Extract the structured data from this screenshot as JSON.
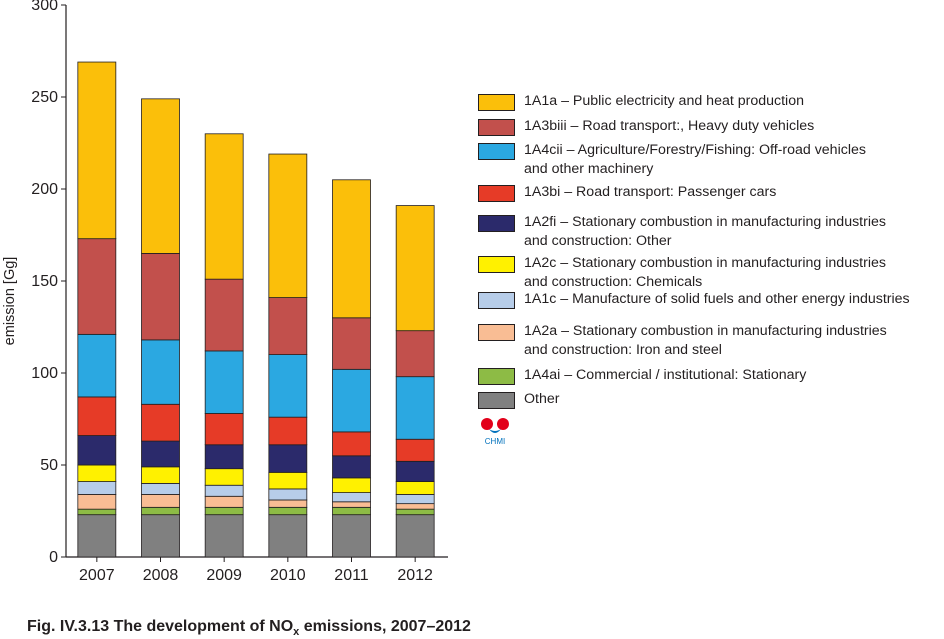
{
  "chart_data": {
    "type": "bar",
    "stacked": true,
    "categories": [
      "2007",
      "2008",
      "2009",
      "2010",
      "2011",
      "2012"
    ],
    "ylabel": "emission [Gg]",
    "xlabel": "",
    "ylim": [
      0,
      300
    ],
    "yticks": [
      0,
      50,
      100,
      150,
      200,
      250,
      300
    ],
    "grid": false,
    "legend_position": "right",
    "series": [
      {
        "name": "Other",
        "color": "#808080",
        "values": [
          23,
          23,
          23,
          23,
          23,
          23
        ]
      },
      {
        "name": "1A4ai – Commercial / institutional: Stationary",
        "color": "#8dbb45",
        "values": [
          3,
          4,
          4,
          4,
          4,
          3
        ]
      },
      {
        "name": "1A2a – Stationary combustion in manufacturing industries\nand construction: Iron and steel",
        "color": "#f9bd94",
        "values": [
          8,
          7,
          6,
          4,
          3,
          3
        ]
      },
      {
        "name": "1A1c – Manufacture of solid fuels and other energy industries",
        "color": "#b7cde9",
        "values": [
          7,
          6,
          6,
          6,
          5,
          5
        ]
      },
      {
        "name": "1A2c – Stationary combustion in manufacturing industries\nand construction: Chemicals",
        "color": "#fff100",
        "values": [
          9,
          9,
          9,
          9,
          8,
          7
        ]
      },
      {
        "name": "1A2fi – Stationary combustion in manufacturing industries\nand construction: Other",
        "color": "#2b2a6b",
        "values": [
          16,
          14,
          13,
          15,
          12,
          11
        ]
      },
      {
        "name": "1A3bi – Road transport: Passenger cars",
        "color": "#e63b27",
        "values": [
          21,
          20,
          17,
          15,
          13,
          12
        ]
      },
      {
        "name": "1A4cii – Agriculture/Forestry/Fishing: Off-road vehicles\nand other machinery",
        "color": "#2ba8e1",
        "values": [
          34,
          35,
          34,
          34,
          34,
          34
        ]
      },
      {
        "name": "1A3biii – Road transport:, Heavy duty vehicles",
        "color": "#c2504c",
        "values": [
          52,
          47,
          39,
          31,
          28,
          25
        ]
      },
      {
        "name": "1A1a – Public electricity and heat production",
        "color": "#fbbf0a",
        "values": [
          96,
          84,
          79,
          78,
          75,
          68
        ]
      }
    ],
    "totals": [
      269,
      249,
      230,
      219,
      205,
      191
    ]
  },
  "legend": [
    {
      "label": "1A1a – Public electricity and heat production",
      "color": "#fbbf0a"
    },
    {
      "label": "1A3biii – Road transport:, Heavy duty vehicles",
      "color": "#c2504c"
    },
    {
      "label": "1A4cii – Agriculture/Forestry/Fishing: Off-road vehicles\nand other machinery",
      "color": "#2ba8e1"
    },
    {
      "label": "1A3bi – Road transport: Passenger cars",
      "color": "#e63b27"
    },
    {
      "label": "1A2fi – Stationary combustion in manufacturing industries\nand construction: Other",
      "color": "#2b2a6b"
    },
    {
      "label": "1A2c – Stationary combustion in manufacturing industries\nand construction: Chemicals",
      "color": "#fff100"
    },
    {
      "label": "1A1c – Manufacture of solid fuels and other energy industries",
      "color": "#b7cde9"
    },
    {
      "label": "1A2a – Stationary combustion in manufacturing industries\nand construction: Iron and steel",
      "color": "#f9bd94"
    },
    {
      "label": "1A4ai – Commercial / institutional: Stationary",
      "color": "#8dbb45"
    },
    {
      "label": "Other",
      "color": "#808080"
    }
  ],
  "logo": {
    "text": "CHMI",
    "colors": [
      "#e2001a",
      "#0071bc"
    ]
  },
  "caption": {
    "prefix": "Fig. IV.3.13  The development of NO",
    "subscript": "x",
    "suffix": " emissions, 2007–2012"
  }
}
